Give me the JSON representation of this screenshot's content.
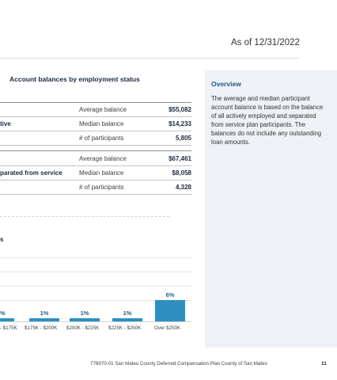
{
  "header": {
    "as_of": "As of 12/31/2022"
  },
  "balances": {
    "title": "Account balances by employment status",
    "groups": [
      {
        "label": "tive",
        "rows": [
          {
            "metric": "Average balance",
            "value": "$55,082"
          },
          {
            "metric": "Median balance",
            "value": "$14,233"
          },
          {
            "metric": "# of participants",
            "value": "5,805"
          }
        ]
      },
      {
        "label": "parated from service",
        "rows": [
          {
            "metric": "Average balance",
            "value": "$67,461"
          },
          {
            "metric": "Median balance",
            "value": "$8,058"
          },
          {
            "metric": "# of participants",
            "value": "4,328"
          }
        ]
      }
    ]
  },
  "distribution": {
    "title": "s"
  },
  "chart_data": {
    "type": "bar",
    "title": "s",
    "categories": [
      "- $175K",
      "$175K - $200K",
      "$200K - $225K",
      "$225K - $250K",
      "Over $250K"
    ],
    "values": [
      1,
      1,
      1,
      1,
      6
    ],
    "labels": [
      "%",
      "1%",
      "1%",
      "1%",
      "6%"
    ],
    "ylim": [
      0,
      20
    ],
    "grid": true
  },
  "overview": {
    "title": "Overview",
    "text": "The average and median participant account balance is based on the balance of all actively employed and separated from service plan participants. The balances do not include any outstanding loan amounts."
  },
  "footer": {
    "text": "776970-01 San Mateo County Deferred Compensation Plan County of San Mateo",
    "page": "11"
  },
  "colors": {
    "bar": "#2f8fc0",
    "overview_bg": "#eef1f5",
    "overview_title": "#1a5a8a"
  }
}
